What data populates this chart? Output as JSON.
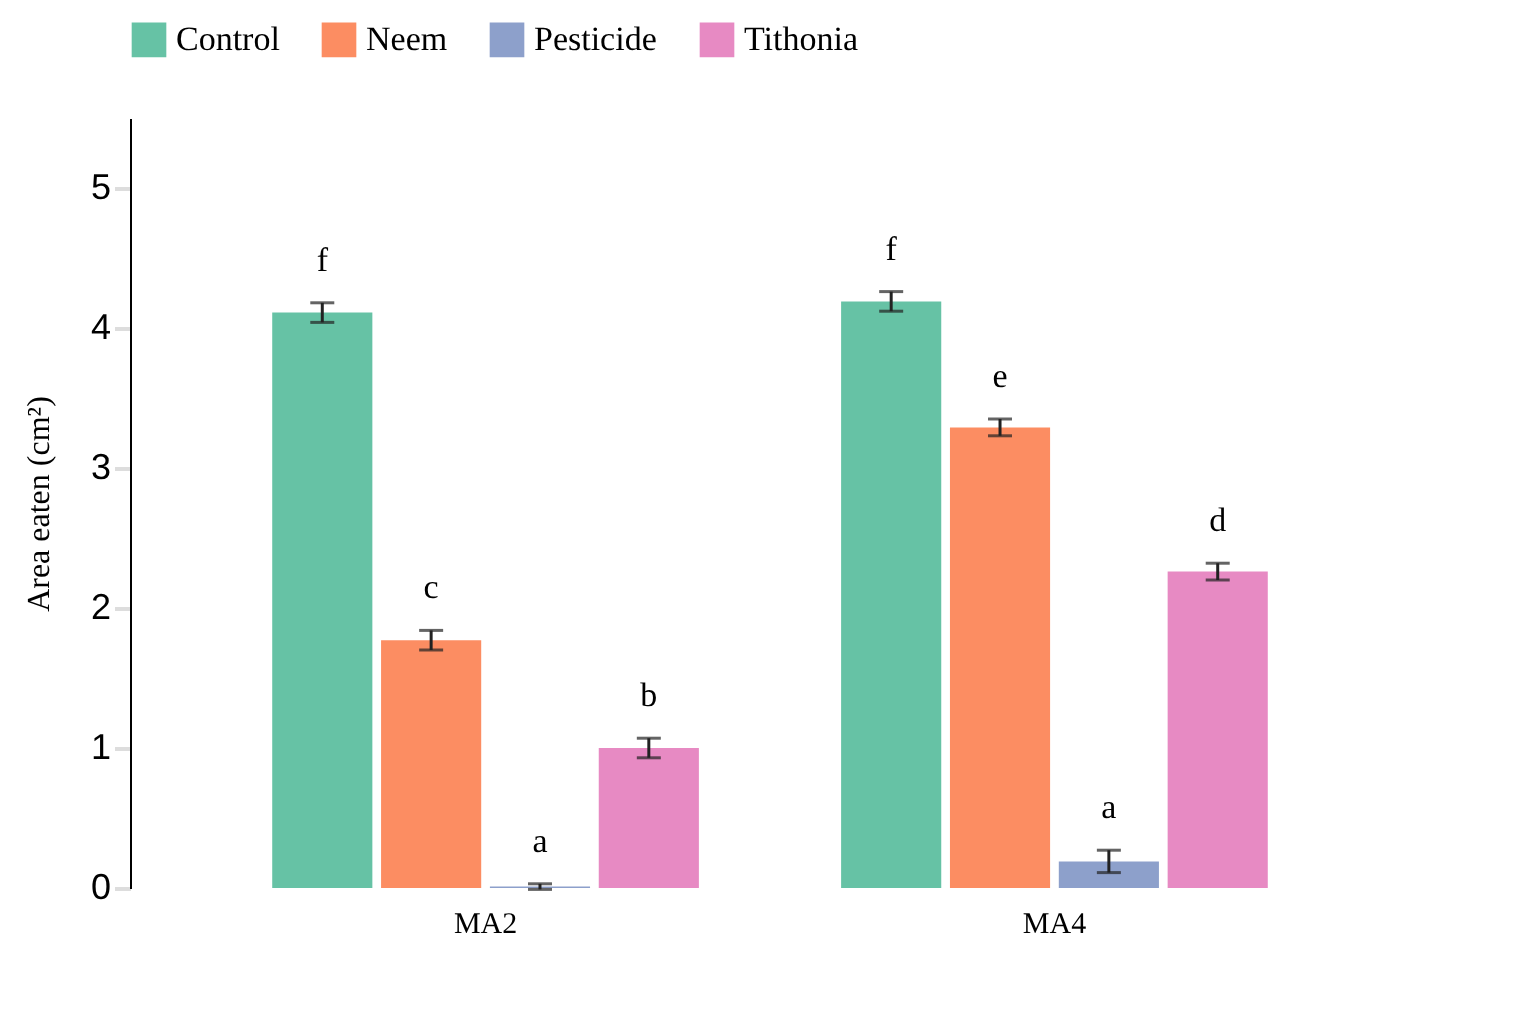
{
  "chart_data": {
    "type": "bar",
    "ylabel": "Area eaten (cm²)",
    "categories": [
      "MA2",
      "MA4"
    ],
    "series": [
      {
        "name": "Control",
        "color": "#66c2a5",
        "values": [
          4.11,
          4.19
        ],
        "errors": [
          0.07,
          0.07
        ],
        "value_labels": [
          "f",
          "f"
        ]
      },
      {
        "name": "Neem",
        "color": "#fc8d62",
        "values": [
          1.77,
          3.29
        ],
        "errors": [
          0.07,
          0.06
        ],
        "value_labels": [
          "c",
          "e"
        ]
      },
      {
        "name": "Pesticide",
        "color": "#8da0cb",
        "values": [
          0.01,
          0.19
        ],
        "errors": [
          0.02,
          0.08
        ],
        "value_labels": [
          "a",
          "a"
        ]
      },
      {
        "name": "Tithonia",
        "color": "#e78ac3",
        "values": [
          1.0,
          2.26
        ],
        "errors": [
          0.07,
          0.06
        ],
        "value_labels": [
          "b",
          "d"
        ]
      }
    ],
    "ylim": [
      0,
      5.5
    ],
    "yticks": [
      0,
      1,
      2,
      3,
      4,
      5
    ],
    "grid": false,
    "legend": "top"
  }
}
